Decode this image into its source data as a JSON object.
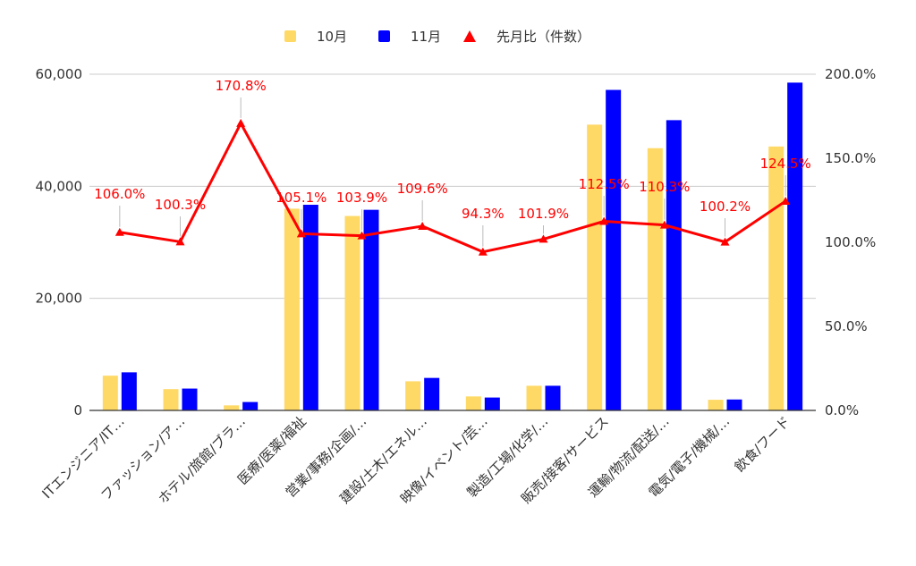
{
  "colors": {
    "bar_oct": "#ffd966",
    "bar_nov": "#0000ff",
    "line_ratio": "#ff0000",
    "grid": "#cccccc",
    "axis": "#333333"
  },
  "chart_data": {
    "type": "bar",
    "categories": [
      "ITエンジニア/IT…",
      "ファッション/ア…",
      "ホテル/旅館/ブラ…",
      "医療/医薬/福祉",
      "営業/事務/企画/…",
      "建設/土木/エネル…",
      "映像/イベント/芸…",
      "製造/工場/化学/…",
      "販売/接客/サービス",
      "運輸/物流/配送/…",
      "電気/電子/機械/…",
      "飲食/フード"
    ],
    "series": [
      {
        "name": "10月",
        "type": "bar",
        "axis": "left",
        "values": [
          6200,
          3800,
          900,
          36000,
          34700,
          5200,
          2500,
          4400,
          51000,
          46800,
          1900,
          47100
        ]
      },
      {
        "name": "11月",
        "type": "bar",
        "axis": "left",
        "values": [
          6800,
          3900,
          1500,
          36700,
          35800,
          5800,
          2300,
          4400,
          57200,
          51800,
          1950,
          58500
        ]
      },
      {
        "name": "先月比（件数）",
        "type": "line",
        "axis": "right",
        "values": [
          106.0,
          100.3,
          170.8,
          105.1,
          103.9,
          109.6,
          94.3,
          101.9,
          112.5,
          110.3,
          100.2,
          124.5
        ],
        "labels": [
          "106.0%",
          "100.3%",
          "170.8%",
          "105.1%",
          "103.9%",
          "109.6%",
          "94.3%",
          "101.9%",
          "112.5%",
          "110.3%",
          "100.2%",
          "124.5%"
        ]
      }
    ],
    "y_left": {
      "min": 0,
      "max": 60000,
      "ticks": [
        0,
        20000,
        40000,
        60000
      ],
      "tick_labels": [
        "0",
        "20,000",
        "40,000",
        "60,000"
      ]
    },
    "y_right": {
      "min": 0,
      "max": 200,
      "ticks": [
        0,
        50,
        100,
        150,
        200
      ],
      "tick_labels": [
        "0.0%",
        "50.0%",
        "100.0%",
        "150.0%",
        "200.0%"
      ]
    },
    "legend": {
      "position": "top",
      "items": [
        "10月",
        "11月",
        "先月比（件数）"
      ]
    },
    "grid": true
  }
}
